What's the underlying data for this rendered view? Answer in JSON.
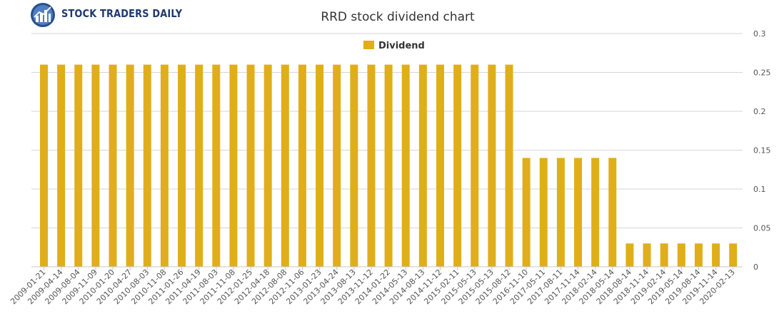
{
  "brand": {
    "name": "STOCK TRADERS DAILY"
  },
  "chart_data": {
    "type": "bar",
    "title": "RRD stock dividend chart",
    "xlabel": "",
    "ylabel": "",
    "ylim": [
      0,
      0.3
    ],
    "yticks": [
      "0",
      "0.05",
      "0.1",
      "0.15",
      "0.2",
      "0.25",
      "0.3"
    ],
    "grid": true,
    "legend_position": "top-center",
    "y_axis_side": "right",
    "color": "#e0ae1b",
    "categories": [
      "2009-01-21",
      "2009-04-14",
      "2009-08-04",
      "2009-11-09",
      "2010-01-20",
      "2010-04-27",
      "2010-08-03",
      "2010-11-08",
      "2011-01-26",
      "2011-04-19",
      "2011-08-03",
      "2011-11-08",
      "2012-01-25",
      "2012-04-18",
      "2012-08-08",
      "2012-11-06",
      "2013-01-23",
      "2013-04-24",
      "2013-08-13",
      "2013-11-12",
      "2014-01-22",
      "2014-05-13",
      "2014-08-13",
      "2014-11-12",
      "2015-02-11",
      "2015-05-13",
      "2015-05-13",
      "2015-08-12",
      "2016-11-10",
      "2017-05-11",
      "2017-08-11",
      "2017-11-14",
      "2018-02-14",
      "2018-05-14",
      "2018-08-14",
      "2018-11-14",
      "2019-02-14",
      "2019-05-14",
      "2019-08-14",
      "2019-11-14",
      "2020-02-13"
    ],
    "series": [
      {
        "name": "Dividend",
        "values": [
          0.26,
          0.26,
          0.26,
          0.26,
          0.26,
          0.26,
          0.26,
          0.26,
          0.26,
          0.26,
          0.26,
          0.26,
          0.26,
          0.26,
          0.26,
          0.26,
          0.26,
          0.26,
          0.26,
          0.26,
          0.26,
          0.26,
          0.26,
          0.26,
          0.26,
          0.26,
          0.26,
          0.26,
          0.14,
          0.14,
          0.14,
          0.14,
          0.14,
          0.14,
          0.03,
          0.03,
          0.03,
          0.03,
          0.03,
          0.03,
          0.03
        ]
      }
    ]
  }
}
